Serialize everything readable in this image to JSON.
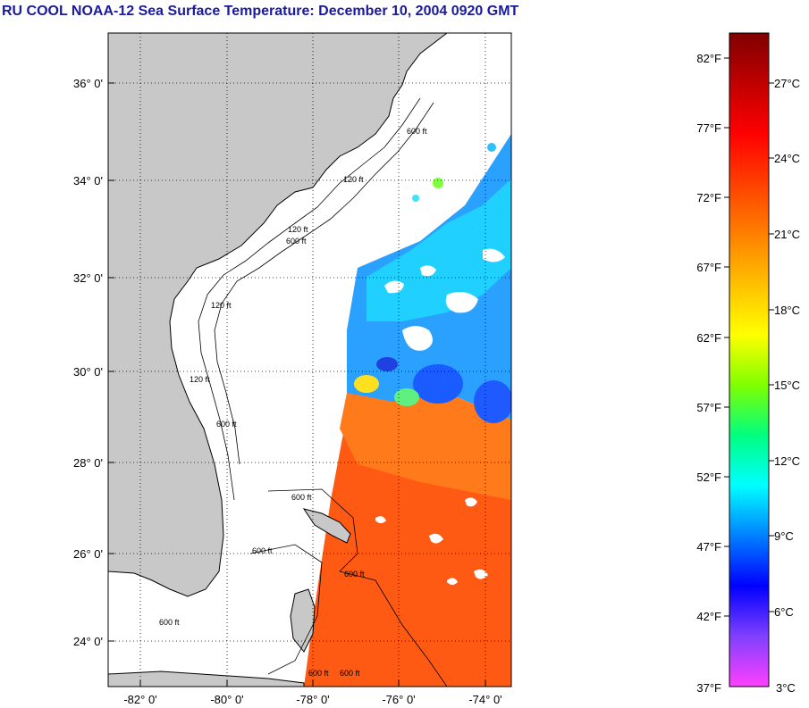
{
  "title": "RU COOL  NOAA-12  Sea Surface Temperature:  December 10, 2004 0920 GMT",
  "map": {
    "lat_labels": [
      "36° 0'",
      "34° 0'",
      "32° 0'",
      "30° 0'",
      "28° 0'",
      "26° 0'",
      "24° 0'"
    ],
    "lon_labels": [
      "-82° 0'",
      "-80° 0'",
      "-78° 0'",
      "-76° 0'",
      "-74° 0'"
    ],
    "grid": true,
    "colors": {
      "land": "#c8c8c8",
      "no_data": "#ffffff",
      "coast": "#000000"
    },
    "contour_labels": [
      "120 ft",
      "600 ft",
      "120 ft",
      "600 ft",
      "120 ft",
      "600 ft",
      "600 ft",
      "600 ft",
      "120 ft",
      "600 ft",
      "600 ft",
      "600 ft",
      "600 ft"
    ]
  },
  "colorbar": {
    "fahrenheit_labels": [
      "82°F",
      "77°F",
      "72°F",
      "67°F",
      "62°F",
      "57°F",
      "52°F",
      "47°F",
      "42°F",
      "37°F"
    ],
    "celsius_labels": [
      "27°C",
      "24°C",
      "21°C",
      "18°C",
      "15°C",
      "12°C",
      "9°C",
      "6°C",
      "3°C"
    ],
    "colors": [
      "#ff40ff",
      "#8040ff",
      "#0000ff",
      "#0080ff",
      "#00ffff",
      "#00ff80",
      "#80ff00",
      "#ffff00",
      "#ffc000",
      "#ff8000",
      "#ff4000",
      "#ff0000",
      "#c00000",
      "#800000"
    ]
  }
}
